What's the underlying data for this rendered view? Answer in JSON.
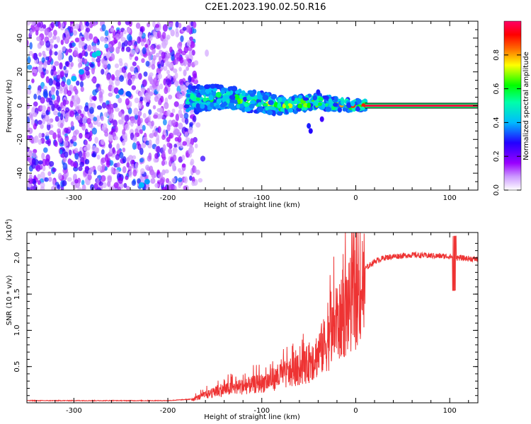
{
  "title": "C2E1.2023.190.02.50.R16",
  "colors": {
    "snr_line": "#ee3333",
    "frame": "#000000",
    "colormap": [
      "#ffffff",
      "#9900ff",
      "#3300ff",
      "#00ccff",
      "#00ff00",
      "#ffff00",
      "#ff6600",
      "#ff0000",
      "#ff0066"
    ]
  },
  "chart_data": [
    {
      "type": "heatmap",
      "name": "spectrogram",
      "xlabel": "Height of straight line (km)",
      "ylabel": "Frequency (Hz)",
      "xlim": [
        -350,
        130
      ],
      "ylim": [
        -50,
        50
      ],
      "xticks": [
        -300,
        -200,
        -100,
        0,
        100
      ],
      "yticks": [
        -40,
        -20,
        0,
        20,
        40
      ],
      "colorbar": {
        "label": "Normalized spectral amplitude",
        "range": [
          0.0,
          1.0
        ],
        "ticks": [
          "0.0",
          "0.2",
          "0.4",
          "0.6",
          "0.8"
        ]
      },
      "features": {
        "noise_region_x": [
          -350,
          -170
        ],
        "tone_track": {
          "x": [
            -180,
            -150,
            -120,
            -100,
            -80,
            -60,
            -40,
            -20,
            0,
            10,
            130
          ],
          "freq": [
            3,
            5,
            3,
            2,
            0,
            1,
            2,
            1,
            0,
            0,
            0
          ]
        }
      }
    },
    {
      "type": "line",
      "name": "snr",
      "xlabel": "Height of straight line (km)",
      "ylabel": "SNR (10 * v/v)",
      "multiplier": "(x10",
      "multiplier_exp": "4",
      "multiplier_close": ")",
      "xlim": [
        -350,
        130
      ],
      "ylim": [
        0,
        2.35
      ],
      "xticks": [
        -300,
        -200,
        -100,
        0,
        100
      ],
      "yticks": [
        "0.5",
        "1.0",
        "1.5",
        "2.0"
      ],
      "series": [
        {
          "x": [
            -350,
            -250,
            -200,
            -175,
            -160,
            -140,
            -120,
            -100,
            -80,
            -60,
            -50,
            -40,
            -30,
            -20,
            -10,
            0,
            10,
            20,
            30,
            40,
            60,
            80,
            100,
            110,
            130
          ],
          "y": [
            0.03,
            0.03,
            0.03,
            0.05,
            0.12,
            0.2,
            0.25,
            0.3,
            0.4,
            0.5,
            0.6,
            0.75,
            0.95,
            1.15,
            1.4,
            1.6,
            1.85,
            1.95,
            2.0,
            2.02,
            2.04,
            2.03,
            2.02,
            2.0,
            1.98
          ]
        }
      ]
    }
  ]
}
